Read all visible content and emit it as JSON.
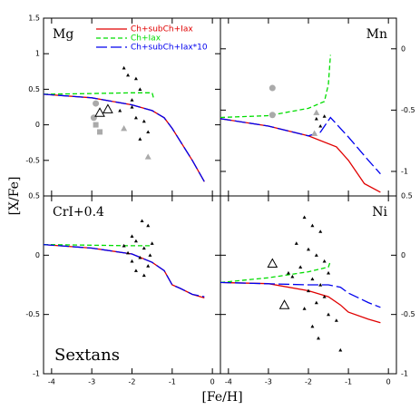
{
  "x_label": "[Fe/H]",
  "y_label": "[X/Fe]",
  "chart_data": [
    {
      "type": "line",
      "title": "Mg",
      "xlim": [
        -4.2,
        0.2
      ],
      "ylim": [
        -1,
        1.5
      ],
      "xticks": [
        -4,
        -3,
        -2,
        -1,
        0
      ],
      "yticks": [
        -0.5,
        0,
        0.5,
        1,
        1.5
      ],
      "series": [
        {
          "name": "Ch+subCh+Iax",
          "color": "#e00000",
          "style": "solid",
          "x": [
            -4.2,
            -3,
            -2,
            -1.5,
            -1.2,
            -1,
            -0.5,
            -0.2
          ],
          "values": [
            0.43,
            0.38,
            0.28,
            0.2,
            0.1,
            -0.05,
            -0.5,
            -0.8
          ]
        },
        {
          "name": "Ch+Iax",
          "color": "#00dd00",
          "style": "dashed",
          "x": [
            -4.2,
            -3,
            -2,
            -1.5,
            -1.45
          ],
          "values": [
            0.43,
            0.44,
            0.45,
            0.45,
            0.35
          ]
        },
        {
          "name": "Ch+subCh+Iax*10",
          "color": "#0000ee",
          "style": "longdash",
          "x": [
            -4.2,
            -3,
            -2,
            -1.5,
            -1.2,
            -1,
            -0.5,
            -0.2
          ],
          "values": [
            0.43,
            0.38,
            0.28,
            0.2,
            0.1,
            -0.05,
            -0.5,
            -0.8
          ]
        },
        {
          "color": "#000000",
          "style": "triangle",
          "x": [
            -2.2,
            -2.1,
            -1.9,
            -1.8,
            -2.0,
            -1.9,
            -1.8,
            -1.6,
            -1.7,
            -2.3,
            -2.0
          ],
          "values": [
            0.8,
            0.7,
            0.65,
            0.5,
            0.35,
            0.1,
            -0.2,
            -0.1,
            0.05,
            0.2,
            0.25
          ]
        },
        {
          "color": "#aaaaaa",
          "style": "circle",
          "x": [
            -2.9,
            -2.95
          ],
          "values": [
            0.3,
            0.1
          ]
        },
        {
          "color": "#aaaaaa",
          "style": "square",
          "x": [
            -2.8,
            -2.9
          ],
          "values": [
            -0.1,
            0.0
          ]
        },
        {
          "color": "#aaaaaa",
          "style": "triangle",
          "x": [
            -1.6,
            -2.2
          ],
          "values": [
            -0.45,
            -0.05
          ]
        },
        {
          "color": "#000000",
          "style": "open-triangle",
          "x": [
            -2.8,
            -2.6
          ],
          "values": [
            0.17,
            0.22
          ]
        }
      ]
    },
    {
      "type": "line",
      "title": "Mn",
      "xlim": [
        -4.2,
        0.2
      ],
      "ylim": [
        -1.2,
        0.25
      ],
      "xticks": [
        -4,
        -3,
        -2,
        -1,
        0
      ],
      "yticks": [
        -1,
        -0.5,
        0
      ],
      "series": [
        {
          "color": "#e00000",
          "style": "solid",
          "x": [
            -4.2,
            -3,
            -2,
            -1.3,
            -1,
            -0.6,
            -0.2
          ],
          "values": [
            -0.57,
            -0.63,
            -0.71,
            -0.8,
            -0.91,
            -1.1,
            -1.17
          ]
        },
        {
          "color": "#00dd00",
          "style": "dashed",
          "x": [
            -4.2,
            -3,
            -2,
            -1.6,
            -1.5,
            -1.45
          ],
          "values": [
            -0.56,
            -0.545,
            -0.485,
            -0.43,
            -0.29,
            -0.05
          ]
        },
        {
          "color": "#0000ee",
          "style": "longdash",
          "x": [
            -4.2,
            -3,
            -2,
            -1.7,
            -1.45,
            -1,
            -0.5,
            -0.2
          ],
          "values": [
            -0.57,
            -0.63,
            -0.71,
            -0.68,
            -0.56,
            -0.72,
            -0.91,
            -1.02
          ]
        },
        {
          "color": "#aaaaaa",
          "style": "circle",
          "x": [
            -2.9,
            -2.9
          ],
          "values": [
            -0.32,
            -0.54
          ]
        },
        {
          "color": "#aaaaaa",
          "style": "triangle",
          "x": [
            -1.8,
            -1.85
          ],
          "values": [
            -0.52,
            -0.69
          ]
        },
        {
          "color": "#000000",
          "style": "triangle",
          "x": [
            -1.8,
            -1.7,
            -1.6
          ],
          "values": [
            -0.57,
            -0.63,
            -0.55
          ]
        }
      ]
    },
    {
      "type": "line",
      "title": "CrI+0.4",
      "annotation": "Sextans",
      "xlim": [
        -4.2,
        0.2
      ],
      "ylim": [
        -1,
        0.5
      ],
      "xticks": [
        -4,
        -3,
        -2,
        -1,
        0
      ],
      "yticks": [
        -1,
        -0.5,
        0,
        0.5
      ],
      "series": [
        {
          "color": "#e00000",
          "style": "solid",
          "x": [
            -4.2,
            -3,
            -2,
            -1.5,
            -1.2,
            -1,
            -0.8,
            -0.5,
            -0.2
          ],
          "values": [
            0.09,
            0.06,
            0.01,
            -0.06,
            -0.13,
            -0.25,
            -0.28,
            -0.33,
            -0.36
          ]
        },
        {
          "color": "#00dd00",
          "style": "dashed",
          "x": [
            -4.2,
            -2,
            -1.5
          ],
          "values": [
            0.09,
            0.08,
            0.08
          ]
        },
        {
          "color": "#0000ee",
          "style": "longdash",
          "x": [
            -4.2,
            -3,
            -2,
            -1.5,
            -1.2,
            -1,
            -0.8,
            -0.5,
            -0.2
          ],
          "values": [
            0.09,
            0.06,
            0.01,
            -0.06,
            -0.13,
            -0.25,
            -0.28,
            -0.33,
            -0.35
          ]
        },
        {
          "color": "#000000",
          "style": "triangle",
          "x": [
            -1.75,
            -1.6,
            -2.0,
            -1.9,
            -1.7,
            -1.8,
            -2.0,
            -1.6,
            -1.9,
            -1.5,
            -2.1,
            -1.7,
            -1.55,
            -2.2
          ],
          "values": [
            0.29,
            0.25,
            0.16,
            0.12,
            0.06,
            -0.02,
            -0.05,
            -0.09,
            -0.13,
            0.1,
            0.02,
            -0.17,
            0.0,
            0.08
          ]
        }
      ]
    },
    {
      "type": "line",
      "title": "Ni",
      "xlim": [
        -4.2,
        0.2
      ],
      "ylim": [
        -1,
        0.5
      ],
      "xticks": [
        -4,
        -3,
        -2,
        -1,
        0
      ],
      "yticks": [
        -1,
        -0.5,
        0,
        0.5
      ],
      "series": [
        {
          "color": "#e00000",
          "style": "solid",
          "x": [
            -4.2,
            -3,
            -2,
            -1.5,
            -1.2,
            -1,
            -0.5,
            -0.2
          ],
          "values": [
            -0.23,
            -0.24,
            -0.3,
            -0.35,
            -0.42,
            -0.48,
            -0.54,
            -0.57
          ]
        },
        {
          "color": "#00dd00",
          "style": "dashed",
          "x": [
            -4.2,
            -3,
            -2,
            -1.5,
            -1.45
          ],
          "values": [
            -0.23,
            -0.19,
            -0.14,
            -0.1,
            -0.05
          ]
        },
        {
          "color": "#0000ee",
          "style": "longdash",
          "x": [
            -4.2,
            -2,
            -1.5,
            -1.2,
            -1,
            -0.5,
            -0.2
          ],
          "values": [
            -0.23,
            -0.25,
            -0.25,
            -0.27,
            -0.32,
            -0.4,
            -0.44
          ]
        },
        {
          "color": "#000000",
          "style": "triangle",
          "x": [
            -2.1,
            -1.9,
            -1.7,
            -2.3,
            -2.0,
            -1.8,
            -1.6,
            -2.2,
            -1.5,
            -2.4,
            -1.9,
            -1.7,
            -2.0,
            -1.6,
            -1.8,
            -2.1,
            -1.5,
            -1.3,
            -1.2,
            -2.5,
            -1.9,
            -1.75
          ],
          "values": [
            0.32,
            0.25,
            0.2,
            0.1,
            0.05,
            0.0,
            -0.05,
            -0.1,
            -0.15,
            -0.18,
            -0.2,
            -0.25,
            -0.3,
            -0.35,
            -0.4,
            -0.45,
            -0.5,
            -0.55,
            -0.8,
            -0.15,
            -0.6,
            -0.7
          ]
        },
        {
          "color": "#000000",
          "style": "open-triangle",
          "x": [
            -2.9,
            -2.6
          ],
          "values": [
            -0.07,
            -0.42
          ]
        }
      ]
    }
  ]
}
